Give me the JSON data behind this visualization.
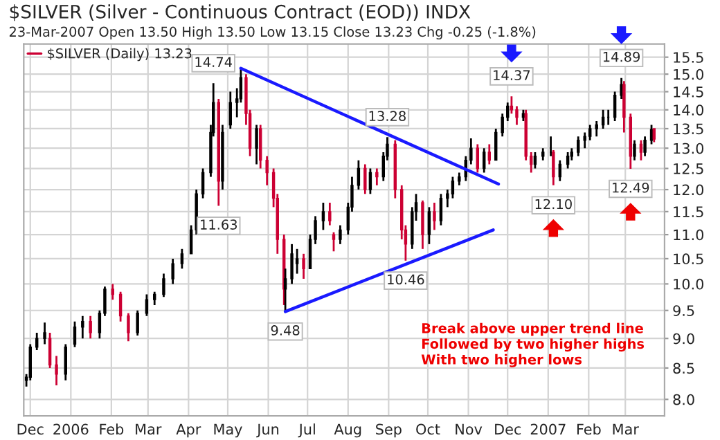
{
  "chart_data": {
    "type": "candlestick",
    "title": "$SILVER (Silver - Continuous Contract (EOD)) INDX",
    "subtitle": "23-Mar-2007 Open 13.50 High 13.50 Low 13.15 Close 13.23 Chg -0.25 (-1.8%)",
    "log": true,
    "grid": true,
    "legend": "top left",
    "xlim": [
      "2005-11-26",
      "2007-03-31"
    ],
    "xticks": [
      {
        "value": "2005-12-01",
        "label": "Dec"
      },
      {
        "value": "2006-01-01",
        "label": "2006"
      },
      {
        "value": "2006-02-01",
        "label": "Feb"
      },
      {
        "value": "2006-03-01",
        "label": "Mar"
      },
      {
        "value": "2006-04-01",
        "label": "Apr"
      },
      {
        "value": "2006-05-01",
        "label": "May"
      },
      {
        "value": "2006-06-01",
        "label": "Jun"
      },
      {
        "value": "2006-07-01",
        "label": "Jul"
      },
      {
        "value": "2006-08-01",
        "label": "Aug"
      },
      {
        "value": "2006-09-01",
        "label": "Sep"
      },
      {
        "value": "2006-10-01",
        "label": "Oct"
      },
      {
        "value": "2006-11-01",
        "label": "Nov"
      },
      {
        "value": "2006-12-01",
        "label": "Dec"
      },
      {
        "value": "2007-01-01",
        "label": "2007"
      },
      {
        "value": "2007-02-01",
        "label": "Feb"
      },
      {
        "value": "2007-03-01",
        "label": "Mar"
      }
    ],
    "ylim": [
      7.75,
      15.9
    ],
    "yticks": [
      {
        "value": 8,
        "label": "8.0"
      },
      {
        "value": 8.5,
        "label": "8.5"
      },
      {
        "value": 9,
        "label": "9.0"
      },
      {
        "value": 9.5,
        "label": "9.5"
      },
      {
        "value": 10,
        "label": "10.0"
      },
      {
        "value": 10.5,
        "label": "10.5"
      },
      {
        "value": 11,
        "label": "11.0"
      },
      {
        "value": 11.5,
        "label": "11.5"
      },
      {
        "value": 12,
        "label": "12.0"
      },
      {
        "value": 12.5,
        "label": "12.5"
      },
      {
        "value": 13,
        "label": "13.0"
      },
      {
        "value": 13.5,
        "label": "13.5"
      },
      {
        "value": 14,
        "label": "14.0"
      },
      {
        "value": 14.5,
        "label": "14.5"
      },
      {
        "value": 15,
        "label": "15.0"
      },
      {
        "value": 15.5,
        "label": "15.5"
      }
    ],
    "series": [
      {
        "name": "$SILVER (Daily) 13.23",
        "x": [
          "2005-11-28",
          "2005-12-01",
          "2005-12-06",
          "2005-12-12",
          "2005-12-16",
          "2005-12-21",
          "2005-12-28",
          "2006-01-04",
          "2006-01-10",
          "2006-01-16",
          "2006-01-23",
          "2006-01-27",
          "2006-02-02",
          "2006-02-08",
          "2006-02-14",
          "2006-02-21",
          "2006-02-28",
          "2006-03-06",
          "2006-03-13",
          "2006-03-20",
          "2006-03-27",
          "2006-04-03",
          "2006-04-07",
          "2006-04-12",
          "2006-04-18",
          "2006-04-20",
          "2006-04-24",
          "2006-04-27",
          "2006-05-03",
          "2006-05-08",
          "2006-05-11",
          "2006-05-15",
          "2006-05-18",
          "2006-05-23",
          "2006-05-26",
          "2006-05-31",
          "2006-06-05",
          "2006-06-08",
          "2006-06-13",
          "2006-06-14",
          "2006-06-19",
          "2006-06-23",
          "2006-06-28",
          "2006-07-03",
          "2006-07-07",
          "2006-07-13",
          "2006-07-18",
          "2006-07-21",
          "2006-07-26",
          "2006-08-01",
          "2006-08-04",
          "2006-08-09",
          "2006-08-14",
          "2006-08-18",
          "2006-08-23",
          "2006-08-28",
          "2006-08-31",
          "2006-09-06",
          "2006-09-11",
          "2006-09-14",
          "2006-09-19",
          "2006-09-22",
          "2006-09-27",
          "2006-10-02",
          "2006-10-06",
          "2006-10-11",
          "2006-10-16",
          "2006-10-20",
          "2006-10-25",
          "2006-10-30",
          "2006-11-03",
          "2006-11-08",
          "2006-11-13",
          "2006-11-17",
          "2006-11-22",
          "2006-11-27",
          "2006-12-01",
          "2006-12-04",
          "2006-12-08",
          "2006-12-13",
          "2006-12-15",
          "2006-12-19",
          "2006-12-22",
          "2006-12-28",
          "2007-01-03",
          "2007-01-05",
          "2007-01-10",
          "2007-01-16",
          "2007-01-19",
          "2007-01-24",
          "2007-01-29",
          "2007-02-02",
          "2007-02-07",
          "2007-02-12",
          "2007-02-16",
          "2007-02-21",
          "2007-02-26",
          "2007-02-28",
          "2007-03-05",
          "2007-03-08",
          "2007-03-13",
          "2007-03-16",
          "2007-03-21",
          "2007-03-23"
        ],
        "ohlc": [
          [
            8.3,
            8.4,
            8.2,
            8.35
          ],
          [
            8.35,
            8.9,
            8.3,
            8.85
          ],
          [
            8.85,
            9.1,
            8.8,
            9.0
          ],
          [
            9.0,
            9.28,
            8.9,
            9.1
          ],
          [
            9.0,
            9.1,
            8.5,
            8.55
          ],
          [
            8.55,
            8.7,
            8.22,
            8.4
          ],
          [
            8.4,
            8.9,
            8.3,
            8.85
          ],
          [
            8.9,
            9.3,
            8.85,
            9.2
          ],
          [
            9.2,
            9.4,
            9.0,
            9.3
          ],
          [
            9.3,
            9.4,
            9.0,
            9.1
          ],
          [
            9.1,
            9.5,
            9.0,
            9.45
          ],
          [
            9.45,
            9.95,
            9.4,
            9.9
          ],
          [
            9.9,
            10.0,
            9.7,
            9.8
          ],
          [
            9.8,
            9.85,
            9.3,
            9.4
          ],
          [
            9.4,
            9.45,
            8.95,
            9.1
          ],
          [
            9.1,
            9.5,
            9.05,
            9.45
          ],
          [
            9.45,
            9.8,
            9.4,
            9.7
          ],
          [
            9.7,
            9.85,
            9.6,
            9.8
          ],
          [
            9.8,
            10.2,
            9.75,
            10.1
          ],
          [
            10.1,
            10.5,
            10.0,
            10.4
          ],
          [
            10.4,
            10.7,
            10.3,
            10.6
          ],
          [
            10.6,
            11.2,
            10.6,
            11.1
          ],
          [
            11.1,
            12.0,
            11.0,
            11.9
          ],
          [
            11.9,
            12.5,
            11.8,
            12.4
          ],
          [
            12.4,
            13.6,
            12.3,
            13.4
          ],
          [
            13.4,
            14.74,
            13.3,
            14.2
          ],
          [
            14.2,
            14.3,
            11.63,
            12.2
          ],
          [
            12.2,
            13.6,
            12.0,
            13.4
          ],
          [
            13.6,
            14.5,
            13.5,
            14.2
          ],
          [
            14.2,
            14.6,
            13.8,
            14.3
          ],
          [
            14.3,
            15.17,
            14.2,
            14.9
          ],
          [
            14.9,
            15.0,
            13.6,
            13.9
          ],
          [
            13.9,
            14.0,
            12.8,
            13.0
          ],
          [
            13.0,
            13.6,
            12.6,
            13.5
          ],
          [
            13.5,
            13.6,
            12.5,
            12.7
          ],
          [
            12.7,
            12.8,
            12.1,
            12.4
          ],
          [
            12.4,
            12.5,
            11.6,
            11.8
          ],
          [
            11.8,
            11.9,
            10.6,
            10.9
          ],
          [
            10.9,
            11.0,
            9.6,
            9.9
          ],
          [
            9.9,
            10.3,
            9.48,
            10.1
          ],
          [
            10.1,
            10.8,
            10.0,
            10.6
          ],
          [
            10.4,
            10.7,
            10.2,
            10.5
          ],
          [
            10.5,
            10.6,
            10.1,
            10.3
          ],
          [
            10.3,
            11.0,
            10.3,
            10.9
          ],
          [
            10.9,
            11.4,
            10.8,
            11.3
          ],
          [
            11.3,
            11.7,
            11.1,
            11.5
          ],
          [
            11.5,
            11.7,
            11.2,
            11.3
          ],
          [
            11.0,
            11.05,
            10.65,
            10.9
          ],
          [
            10.9,
            11.2,
            10.8,
            11.1
          ],
          [
            11.1,
            11.7,
            11.0,
            11.6
          ],
          [
            11.6,
            12.3,
            11.5,
            12.1
          ],
          [
            12.1,
            12.7,
            12.0,
            12.5
          ],
          [
            12.5,
            12.6,
            11.9,
            12.0
          ],
          [
            12.0,
            12.5,
            11.9,
            12.4
          ],
          [
            12.4,
            12.5,
            12.1,
            12.3
          ],
          [
            12.3,
            12.9,
            12.2,
            12.8
          ],
          [
            12.8,
            13.28,
            12.7,
            13.1
          ],
          [
            13.1,
            13.2,
            11.8,
            12.0
          ],
          [
            12.0,
            12.1,
            10.9,
            11.1
          ],
          [
            11.1,
            11.2,
            10.46,
            10.8
          ],
          [
            10.8,
            11.6,
            10.7,
            11.5
          ],
          [
            11.5,
            11.9,
            11.3,
            11.7
          ],
          [
            11.7,
            11.75,
            10.7,
            11.0
          ],
          [
            11.0,
            11.6,
            10.8,
            11.5
          ],
          [
            11.5,
            11.7,
            11.1,
            11.3
          ],
          [
            11.3,
            11.9,
            11.2,
            11.8
          ],
          [
            11.8,
            12.0,
            11.6,
            11.9
          ],
          [
            11.9,
            12.3,
            11.8,
            12.2
          ],
          [
            12.2,
            12.4,
            12.1,
            12.3
          ],
          [
            12.3,
            12.8,
            12.2,
            12.7
          ],
          [
            12.7,
            13.25,
            12.6,
            13.0
          ],
          [
            13.0,
            13.1,
            12.4,
            12.5
          ],
          [
            12.5,
            13.0,
            12.4,
            12.9
          ],
          [
            12.9,
            13.1,
            12.6,
            12.7
          ],
          [
            12.7,
            13.5,
            12.7,
            13.4
          ],
          [
            13.4,
            13.9,
            13.3,
            13.8
          ],
          [
            13.8,
            14.2,
            13.7,
            14.1
          ],
          [
            14.1,
            14.37,
            13.9,
            14.0
          ],
          [
            14.0,
            14.1,
            13.6,
            13.8
          ],
          [
            13.8,
            14.0,
            13.7,
            13.9
          ],
          [
            13.9,
            14.0,
            12.7,
            12.8
          ],
          [
            12.8,
            12.9,
            12.4,
            12.6
          ],
          [
            12.6,
            12.9,
            12.5,
            12.8
          ],
          [
            12.8,
            13.0,
            12.7,
            12.9
          ],
          [
            12.9,
            13.3,
            12.8,
            12.9
          ],
          [
            12.9,
            12.95,
            12.1,
            12.3
          ],
          [
            12.3,
            12.7,
            12.2,
            12.6
          ],
          [
            12.6,
            12.9,
            12.5,
            12.8
          ],
          [
            12.8,
            13.0,
            12.7,
            12.9
          ],
          [
            12.9,
            13.3,
            12.8,
            13.2
          ],
          [
            13.2,
            13.4,
            13.0,
            13.3
          ],
          [
            13.3,
            13.6,
            13.2,
            13.5
          ],
          [
            13.5,
            13.7,
            13.3,
            13.6
          ],
          [
            13.6,
            14.0,
            13.5,
            13.8
          ],
          [
            13.8,
            14.0,
            13.6,
            13.8
          ],
          [
            13.8,
            14.5,
            13.7,
            14.4
          ],
          [
            14.4,
            14.89,
            14.3,
            14.7
          ],
          [
            14.7,
            14.8,
            13.4,
            13.8
          ],
          [
            13.8,
            13.9,
            12.49,
            12.8
          ],
          [
            12.8,
            13.2,
            12.7,
            13.1
          ],
          [
            13.1,
            13.2,
            12.7,
            12.9
          ],
          [
            12.9,
            13.3,
            12.8,
            13.2
          ],
          [
            13.2,
            13.6,
            13.1,
            13.48
          ],
          [
            13.5,
            13.5,
            13.15,
            13.23
          ]
        ],
        "colors": [
          "#000000",
          "#000000",
          "#000000",
          "#000000",
          "#cc0033",
          "#cc0033",
          "#000000",
          "#000000",
          "#000000",
          "#cc0033",
          "#000000",
          "#000000",
          "#cc0033",
          "#cc0033",
          "#cc0033",
          "#000000",
          "#000000",
          "#000000",
          "#000000",
          "#000000",
          "#000000",
          "#000000",
          "#000000",
          "#000000",
          "#000000",
          "#000000",
          "#cc0033",
          "#000000",
          "#000000",
          "#000000",
          "#000000",
          "#cc0033",
          "#cc0033",
          "#000000",
          "#cc0033",
          "#cc0033",
          "#cc0033",
          "#cc0033",
          "#cc0033",
          "#000000",
          "#000000",
          "#000000",
          "#cc0033",
          "#000000",
          "#000000",
          "#000000",
          "#cc0033",
          "#cc0033",
          "#000000",
          "#000000",
          "#000000",
          "#000000",
          "#cc0033",
          "#000000",
          "#cc0033",
          "#000000",
          "#000000",
          "#cc0033",
          "#cc0033",
          "#cc0033",
          "#000000",
          "#000000",
          "#cc0033",
          "#000000",
          "#cc0033",
          "#000000",
          "#000000",
          "#000000",
          "#000000",
          "#000000",
          "#000000",
          "#cc0033",
          "#000000",
          "#cc0033",
          "#000000",
          "#000000",
          "#000000",
          "#cc0033",
          "#cc0033",
          "#000000",
          "#cc0033",
          "#cc0033",
          "#000000",
          "#000000",
          "#000000",
          "#cc0033",
          "#000000",
          "#000000",
          "#000000",
          "#000000",
          "#000000",
          "#000000",
          "#000000",
          "#000000",
          "#000000",
          "#000000",
          "#000000",
          "#cc0033",
          "#cc0033",
          "#000000",
          "#cc0033",
          "#000000",
          "#000000",
          "#cc0033"
        ]
      },
      {
        "type": "line",
        "color": "#1a1aff",
        "x": [
          "2006-05-11",
          "2006-11-24"
        ],
        "values": [
          15.17,
          12.13
        ]
      },
      {
        "type": "line",
        "color": "#1a1aff",
        "x": [
          "2006-06-14",
          "2006-11-20"
        ],
        "values": [
          9.48,
          11.1
        ]
      }
    ],
    "annotations": [
      {
        "text": "14.74",
        "x": "2006-04-20",
        "y": 14.74
      },
      {
        "text": "11.63",
        "x": "2006-04-24",
        "y": 11.63
      },
      {
        "text": "9.48",
        "x": "2006-06-14",
        "y": 9.48
      },
      {
        "text": "13.28",
        "x": "2006-08-31",
        "y": 13.28
      },
      {
        "text": "10.46",
        "x": "2006-09-14",
        "y": 10.46
      },
      {
        "text": "14.37",
        "x": "2006-12-04",
        "y": 14.37
      },
      {
        "text": "12.10",
        "x": "2007-01-05",
        "y": 12.1
      },
      {
        "text": "14.89",
        "x": "2007-02-26",
        "y": 14.89
      },
      {
        "text": "12.49",
        "x": "2007-03-05",
        "y": 12.49
      },
      "Break above upper trend line\nFollowed by two higher highs\nWith two higher lows"
    ]
  }
}
